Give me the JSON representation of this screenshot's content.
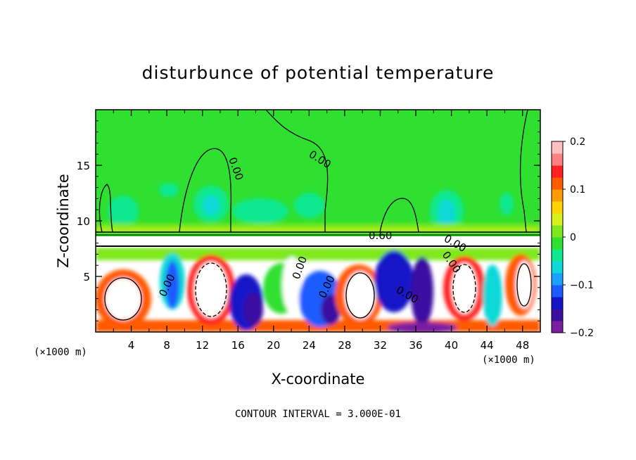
{
  "chart_data": {
    "type": "heatmap",
    "title": "disturbunce of potential temperature",
    "xlabel": "X-coordinate",
    "ylabel": "Z-coordinate",
    "x_unit_left": "(×1000 m)",
    "x_unit_right": "(×1000 m)",
    "xlim": [
      0,
      50
    ],
    "ylim": [
      0,
      20
    ],
    "x_ticks": [
      "4",
      "8",
      "12",
      "16",
      "20",
      "24",
      "28",
      "32",
      "36",
      "40",
      "44",
      "48"
    ],
    "y_ticks": [
      "5",
      "10",
      "15"
    ],
    "colorbar": {
      "min": -0.2,
      "max": 0.2,
      "ticks": [
        "0.2",
        "0.1",
        "0",
        "−0.1",
        "−0.2"
      ],
      "colors": [
        "#7a1fa2",
        "#3a0fa0",
        "#1414c8",
        "#1a5cff",
        "#1aa0ff",
        "#10d8d8",
        "#10e890",
        "#30e030",
        "#7ee81e",
        "#d8f01e",
        "#ffd200",
        "#ff9a00",
        "#ff5a00",
        "#ff2020",
        "#ff8080",
        "#ffc0c0"
      ]
    },
    "contour_labels": [
      "0.00",
      "0.00",
      "0.60",
      "0.00",
      "0.00",
      "0.00",
      "0.00",
      "0.00",
      "0.00"
    ],
    "footer": "CONTOUR INTERVAL = 3.000E-01"
  }
}
